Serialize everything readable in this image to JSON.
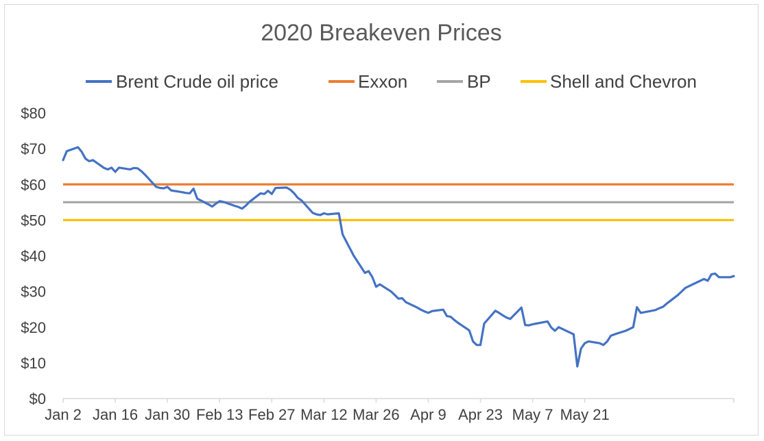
{
  "chart_data": {
    "type": "line",
    "title": "2020 Breakeven Prices",
    "xlabel": "",
    "ylabel": "",
    "ylim": [
      0,
      80
    ],
    "y_ticks": [
      0,
      10,
      20,
      30,
      40,
      50,
      60,
      70,
      80
    ],
    "y_tick_labels": [
      "$0",
      "$10",
      "$20",
      "$30",
      "$40",
      "$50",
      "$60",
      "$70",
      "$80"
    ],
    "x_tick_labels": [
      "Jan 2",
      "Jan 16",
      "Jan 30",
      "Feb 13",
      "Feb 27",
      "Mar 12",
      "Mar 26",
      "Apr 9",
      "Apr 23",
      "May 7",
      "May 21"
    ],
    "grid": false,
    "legend_position": "top",
    "series": [
      {
        "name": "Brent Crude oil price",
        "color": "#4472C4",
        "points": [
          [
            0,
            66.8
          ],
          [
            1,
            69.3
          ],
          [
            4,
            70.4
          ],
          [
            5,
            69.1
          ],
          [
            6,
            67.2
          ],
          [
            7,
            66.5
          ],
          [
            8,
            66.8
          ],
          [
            11,
            64.6
          ],
          [
            12,
            64.2
          ],
          [
            13,
            64.7
          ],
          [
            14,
            63.5
          ],
          [
            15,
            64.7
          ],
          [
            18,
            64.2
          ],
          [
            19,
            64.6
          ],
          [
            20,
            64.5
          ],
          [
            21,
            63.7
          ],
          [
            22,
            62.7
          ],
          [
            25,
            59.3
          ],
          [
            26,
            59.0
          ],
          [
            27,
            58.9
          ],
          [
            28,
            59.3
          ],
          [
            29,
            58.3
          ],
          [
            32,
            57.8
          ],
          [
            33,
            57.6
          ],
          [
            34,
            57.5
          ],
          [
            35,
            58.8
          ],
          [
            36,
            56.0
          ],
          [
            39,
            54.4
          ],
          [
            40,
            53.8
          ],
          [
            41,
            54.6
          ],
          [
            42,
            55.3
          ],
          [
            43,
            55.1
          ],
          [
            46,
            54.0
          ],
          [
            47,
            53.7
          ],
          [
            48,
            53.2
          ],
          [
            49,
            54.0
          ],
          [
            50,
            55.1
          ],
          [
            53,
            57.5
          ],
          [
            54,
            57.3
          ],
          [
            55,
            58.2
          ],
          [
            56,
            57.3
          ],
          [
            57,
            59.0
          ],
          [
            60,
            59.1
          ],
          [
            61,
            58.5
          ],
          [
            62,
            57.5
          ],
          [
            63,
            56.2
          ],
          [
            64,
            55.5
          ],
          [
            67,
            52.0
          ],
          [
            68,
            51.6
          ],
          [
            69,
            51.4
          ],
          [
            70,
            51.9
          ],
          [
            71,
            51.6
          ],
          [
            74,
            51.9
          ],
          [
            75,
            46.0
          ],
          [
            76,
            44.0
          ],
          [
            77,
            42.0
          ],
          [
            78,
            40.0
          ],
          [
            81,
            35.2
          ],
          [
            82,
            35.7
          ],
          [
            83,
            34.0
          ],
          [
            84,
            31.3
          ],
          [
            85,
            32.0
          ],
          [
            88,
            30.0
          ],
          [
            89,
            29.0
          ],
          [
            90,
            28.0
          ],
          [
            91,
            28.1
          ],
          [
            92,
            27.0
          ],
          [
            95,
            25.5
          ],
          [
            96,
            24.9
          ],
          [
            97,
            24.4
          ],
          [
            98,
            24.0
          ],
          [
            99,
            24.5
          ],
          [
            102,
            24.9
          ],
          [
            103,
            23.1
          ],
          [
            104,
            22.9
          ],
          [
            105,
            22.0
          ],
          [
            106,
            21.2
          ],
          [
            109,
            19.1
          ],
          [
            110,
            16.0
          ],
          [
            111,
            15.0
          ],
          [
            112,
            15.0
          ],
          [
            113,
            21.0
          ],
          [
            116,
            24.6
          ],
          [
            117,
            24.0
          ],
          [
            118,
            23.3
          ],
          [
            119,
            22.7
          ],
          [
            120,
            22.3
          ],
          [
            123,
            25.5
          ],
          [
            124,
            20.6
          ],
          [
            125,
            20.5
          ],
          [
            126,
            20.8
          ],
          [
            127,
            21.0
          ],
          [
            130,
            21.6
          ],
          [
            131,
            19.9
          ],
          [
            132,
            19.0
          ],
          [
            133,
            20.0
          ],
          [
            134,
            19.5
          ],
          [
            137,
            18.0
          ],
          [
            138,
            9.0
          ],
          [
            139,
            14.0
          ],
          [
            140,
            15.5
          ],
          [
            141,
            16.0
          ],
          [
            144,
            15.5
          ],
          [
            145,
            15.0
          ],
          [
            146,
            16.0
          ],
          [
            147,
            17.6
          ],
          [
            148,
            18.0
          ],
          [
            151,
            19.0
          ],
          [
            152,
            19.5
          ],
          [
            153,
            20.0
          ],
          [
            154,
            25.6
          ],
          [
            155,
            24.0
          ],
          [
            158,
            24.6
          ],
          [
            159,
            24.8
          ],
          [
            160,
            25.3
          ],
          [
            161,
            25.7
          ],
          [
            162,
            26.6
          ],
          [
            165,
            29.0
          ],
          [
            166,
            30.0
          ],
          [
            167,
            31.0
          ],
          [
            168,
            31.5
          ],
          [
            169,
            32.0
          ],
          [
            172,
            33.5
          ],
          [
            173,
            33.0
          ],
          [
            174,
            34.8
          ],
          [
            175,
            35.0
          ],
          [
            176,
            34.0
          ],
          [
            179,
            34.0
          ],
          [
            180,
            34.3
          ]
        ]
      },
      {
        "name": "Exxon",
        "color": "#ED7D31",
        "value": 60
      },
      {
        "name": "BP",
        "color": "#A5A5A5",
        "value": 55
      },
      {
        "name": "Shell and Chevron",
        "color": "#FFC000",
        "value": 50
      }
    ]
  }
}
